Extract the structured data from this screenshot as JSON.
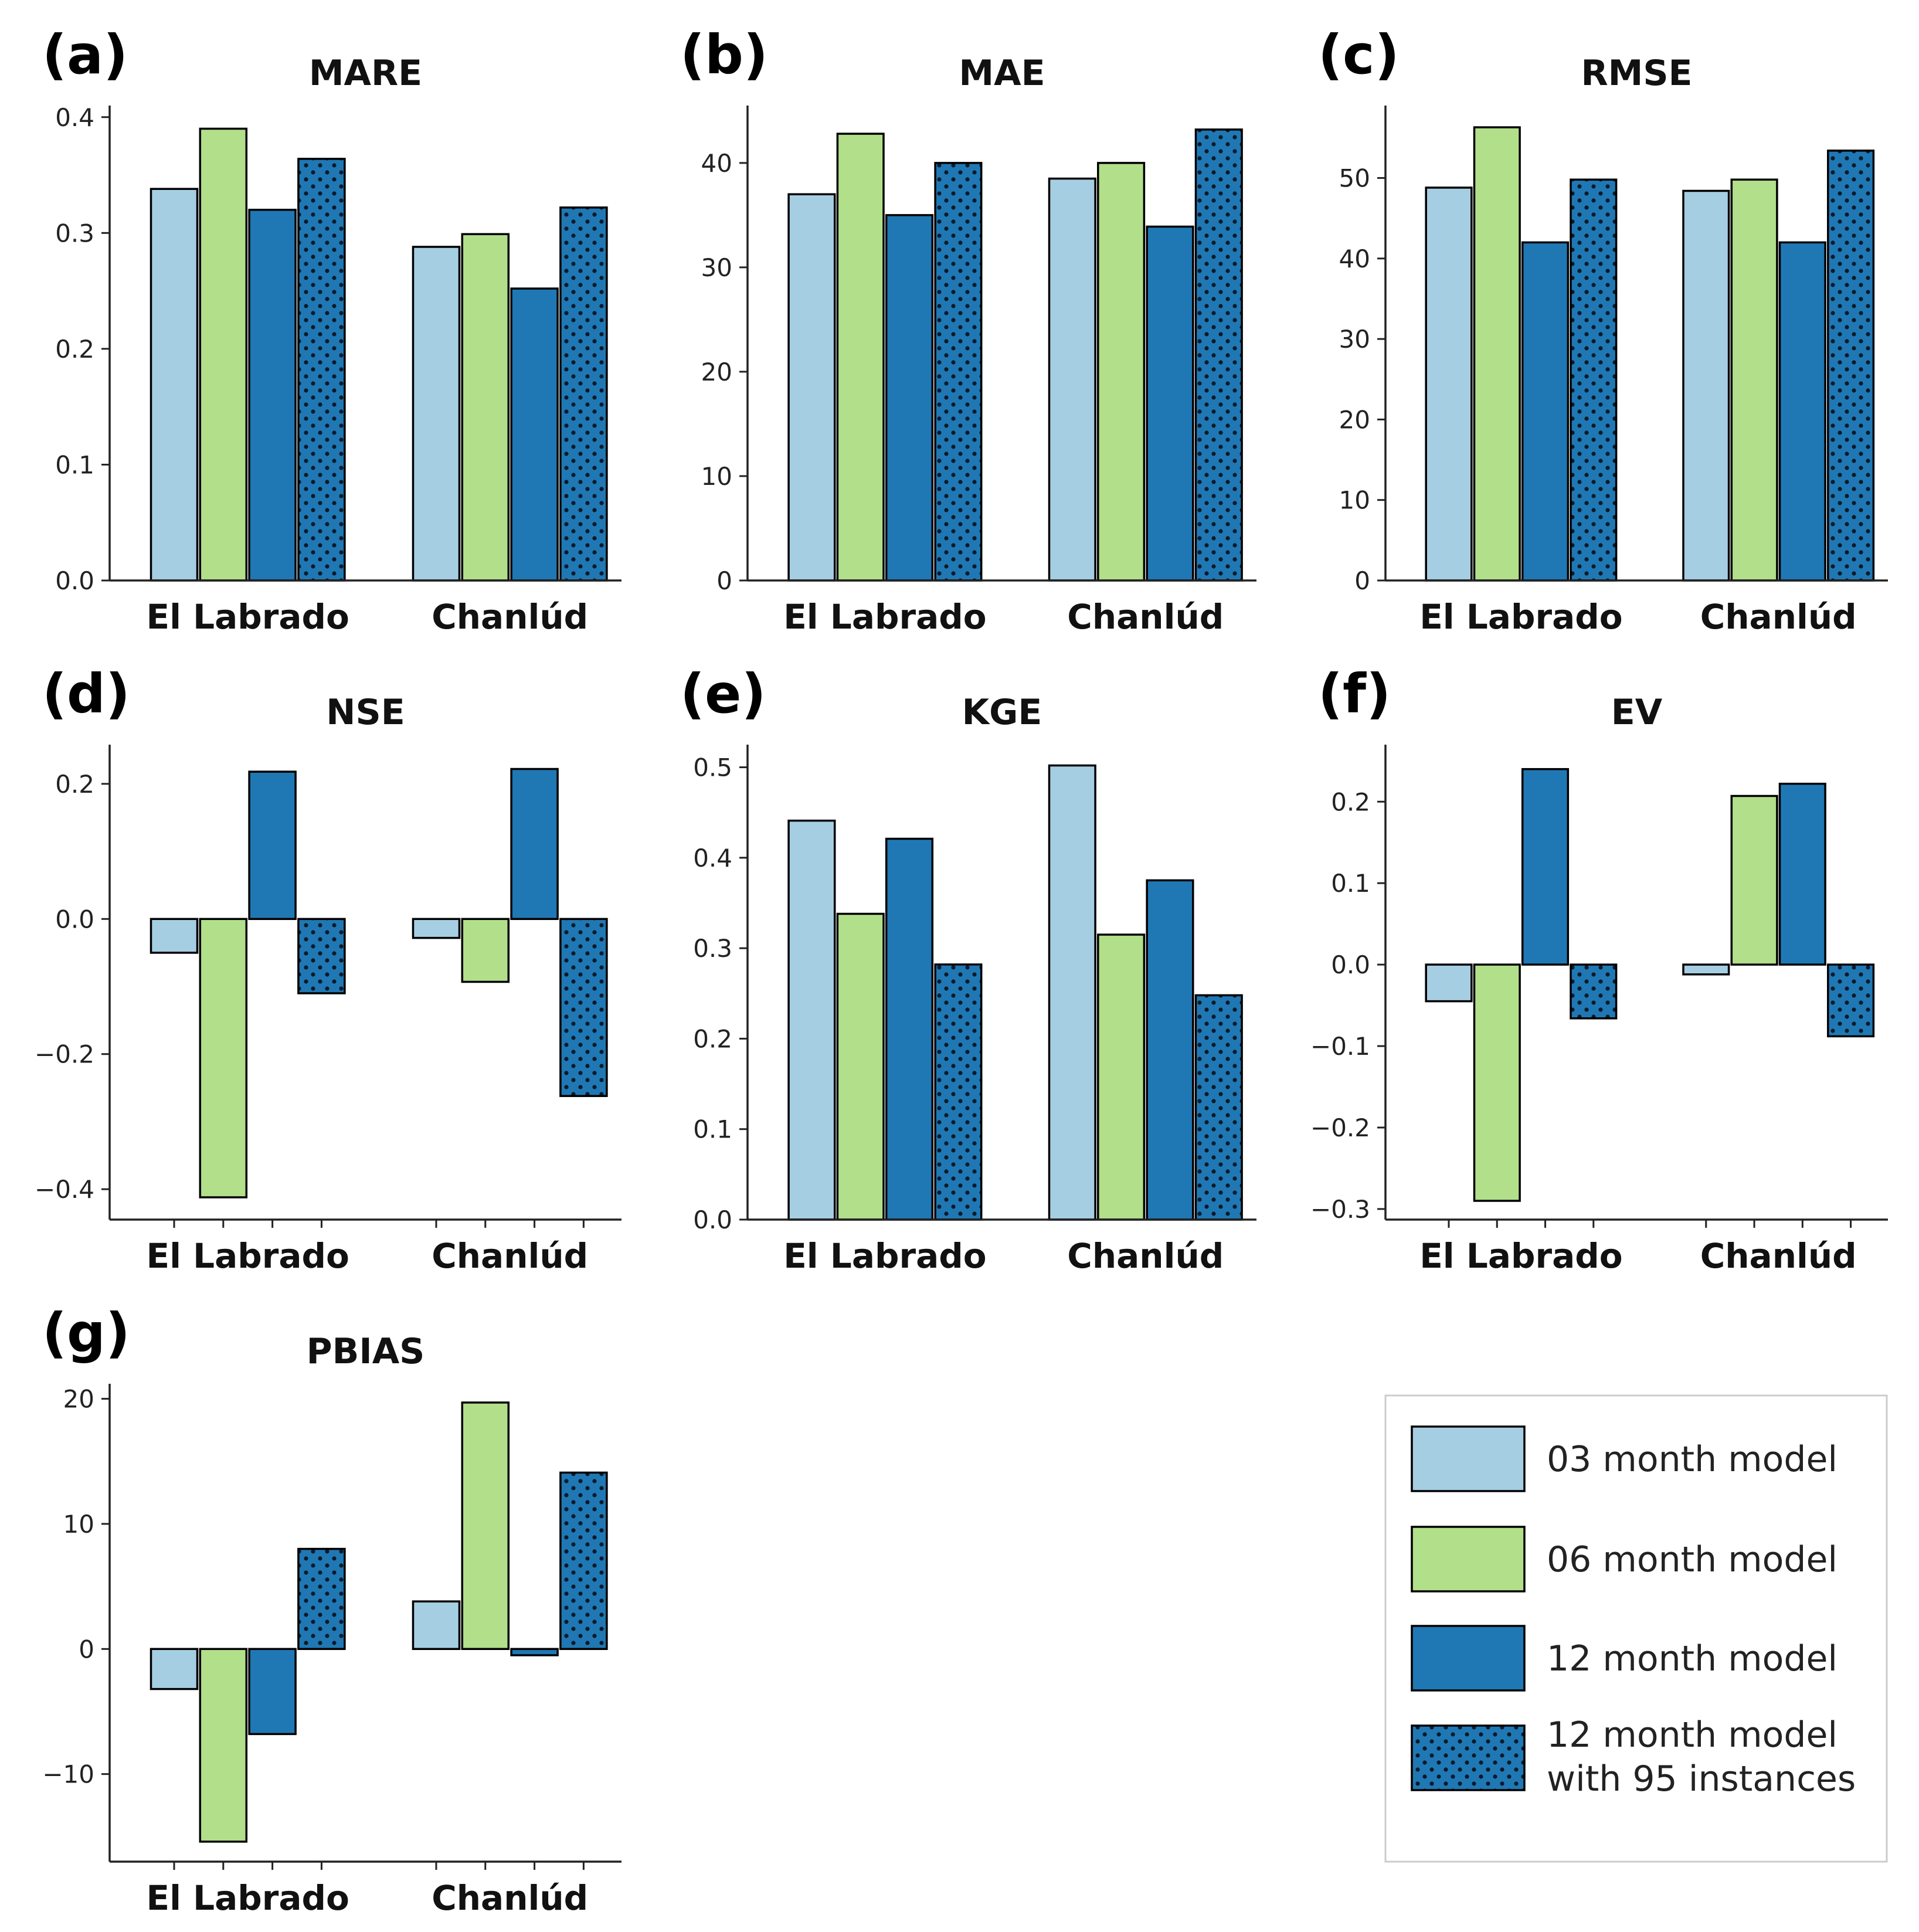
{
  "colors": {
    "m03": "#a6cee3",
    "m06": "#b2df8a",
    "m12": "#1f78b4",
    "m12_95": "#1f78b4",
    "dots": "#0b1a2a",
    "axis": "#222222"
  },
  "legend": {
    "items": [
      {
        "key": "m03",
        "label_lines": [
          "03 month model"
        ]
      },
      {
        "key": "m06",
        "label_lines": [
          "06 month model"
        ]
      },
      {
        "key": "m12",
        "label_lines": [
          "12 month model"
        ]
      },
      {
        "key": "m12_95",
        "label_lines": [
          "12 month model",
          "with 95 instances"
        ]
      }
    ]
  },
  "chart_data": [
    {
      "panel": "(a)",
      "type": "bar",
      "title": "MARE",
      "categories": [
        "El Labrado",
        "Chanlúd"
      ],
      "ylim": [
        0,
        0.41
      ],
      "yticks": [
        0.0,
        0.1,
        0.2,
        0.3,
        0.4
      ],
      "ytick_labels": [
        "0.0",
        "0.1",
        "0.2",
        "0.3",
        "0.4"
      ],
      "show_xticks": false,
      "series": [
        {
          "name": "03 month model",
          "key": "m03",
          "values": [
            0.338,
            0.288
          ]
        },
        {
          "name": "06 month model",
          "key": "m06",
          "values": [
            0.39,
            0.299
          ]
        },
        {
          "name": "12 month model",
          "key": "m12",
          "values": [
            0.32,
            0.252
          ]
        },
        {
          "name": "12 month model with 95 instances",
          "key": "m12_95",
          "values": [
            0.364,
            0.322
          ]
        }
      ]
    },
    {
      "panel": "(b)",
      "type": "bar",
      "title": "MAE",
      "categories": [
        "El Labrado",
        "Chanlúd"
      ],
      "ylim": [
        0,
        45.5
      ],
      "yticks": [
        0,
        10,
        20,
        30,
        40
      ],
      "ytick_labels": [
        "0",
        "10",
        "20",
        "30",
        "40"
      ],
      "show_xticks": false,
      "series": [
        {
          "name": "03 month model",
          "key": "m03",
          "values": [
            37.0,
            38.5
          ]
        },
        {
          "name": "06 month model",
          "key": "m06",
          "values": [
            42.8,
            40.0
          ]
        },
        {
          "name": "12 month model",
          "key": "m12",
          "values": [
            35.0,
            33.9
          ]
        },
        {
          "name": "12 month model with 95 instances",
          "key": "m12_95",
          "values": [
            40.0,
            43.2
          ]
        }
      ]
    },
    {
      "panel": "(c)",
      "type": "bar",
      "title": "RMSE",
      "categories": [
        "El Labrado",
        "Chanlúd"
      ],
      "ylim": [
        0,
        59
      ],
      "yticks": [
        0,
        10,
        20,
        30,
        40,
        50
      ],
      "ytick_labels": [
        "0",
        "10",
        "20",
        "30",
        "40",
        "50"
      ],
      "show_xticks": false,
      "series": [
        {
          "name": "03 month model",
          "key": "m03",
          "values": [
            48.8,
            48.4
          ]
        },
        {
          "name": "06 month model",
          "key": "m06",
          "values": [
            56.3,
            49.8
          ]
        },
        {
          "name": "12 month model",
          "key": "m12",
          "values": [
            42.0,
            42.0
          ]
        },
        {
          "name": "12 month model with 95 instances",
          "key": "m12_95",
          "values": [
            49.8,
            53.4
          ]
        }
      ]
    },
    {
      "panel": "(d)",
      "type": "bar",
      "title": "NSE",
      "categories": [
        "El Labrado",
        "Chanlúd"
      ],
      "ylim": [
        -0.445,
        0.258
      ],
      "yticks": [
        -0.4,
        -0.2,
        0.0,
        0.2
      ],
      "ytick_labels": [
        "−0.4",
        "−0.2",
        "0.0",
        "0.2"
      ],
      "show_xticks": true,
      "series": [
        {
          "name": "03 month model",
          "key": "m03",
          "values": [
            -0.05,
            -0.028
          ]
        },
        {
          "name": "06 month model",
          "key": "m06",
          "values": [
            -0.412,
            -0.093
          ]
        },
        {
          "name": "12 month model",
          "key": "m12",
          "values": [
            0.218,
            0.222
          ]
        },
        {
          "name": "12 month model with 95 instances",
          "key": "m12_95",
          "values": [
            -0.11,
            -0.262
          ]
        }
      ]
    },
    {
      "panel": "(e)",
      "type": "bar",
      "title": "KGE",
      "categories": [
        "El Labrado",
        "Chanlúd"
      ],
      "ylim": [
        0,
        0.525
      ],
      "yticks": [
        0.0,
        0.1,
        0.2,
        0.3,
        0.4,
        0.5
      ],
      "ytick_labels": [
        "0.0",
        "0.1",
        "0.2",
        "0.3",
        "0.4",
        "0.5"
      ],
      "show_xticks": false,
      "series": [
        {
          "name": "03 month model",
          "key": "m03",
          "values": [
            0.441,
            0.502
          ]
        },
        {
          "name": "06 month model",
          "key": "m06",
          "values": [
            0.338,
            0.315
          ]
        },
        {
          "name": "12 month model",
          "key": "m12",
          "values": [
            0.421,
            0.375
          ]
        },
        {
          "name": "12 month model with 95 instances",
          "key": "m12_95",
          "values": [
            0.282,
            0.248
          ]
        }
      ]
    },
    {
      "panel": "(f)",
      "type": "bar",
      "title": "EV",
      "categories": [
        "El Labrado",
        "Chanlúd"
      ],
      "ylim": [
        -0.313,
        0.27
      ],
      "yticks": [
        -0.3,
        -0.2,
        -0.1,
        0.0,
        0.1,
        0.2
      ],
      "ytick_labels": [
        "−0.3",
        "−0.2",
        "−0.1",
        "0.0",
        "0.1",
        "0.2"
      ],
      "show_xticks": true,
      "series": [
        {
          "name": "03 month model",
          "key": "m03",
          "values": [
            -0.045,
            -0.012
          ]
        },
        {
          "name": "06 month model",
          "key": "m06",
          "values": [
            -0.29,
            0.207
          ]
        },
        {
          "name": "12 month model",
          "key": "m12",
          "values": [
            0.24,
            0.222
          ]
        },
        {
          "name": "12 month model with 95 instances",
          "key": "m12_95",
          "values": [
            -0.066,
            -0.088
          ]
        }
      ]
    },
    {
      "panel": "(g)",
      "type": "bar",
      "title": "PBIAS",
      "categories": [
        "El Labrado",
        "Chanlúd"
      ],
      "ylim": [
        -17,
        21.2
      ],
      "yticks": [
        -10,
        0,
        10,
        20
      ],
      "ytick_labels": [
        "−10",
        "0",
        "10",
        "20"
      ],
      "show_xticks": true,
      "series": [
        {
          "name": "03 month model",
          "key": "m03",
          "values": [
            -3.2,
            3.8
          ]
        },
        {
          "name": "06 month model",
          "key": "m06",
          "values": [
            -15.4,
            19.7
          ]
        },
        {
          "name": "12 month model",
          "key": "m12",
          "values": [
            -6.8,
            -0.5
          ]
        },
        {
          "name": "12 month model with 95 instances",
          "key": "m12_95",
          "values": [
            8.0,
            14.1
          ]
        }
      ]
    }
  ]
}
